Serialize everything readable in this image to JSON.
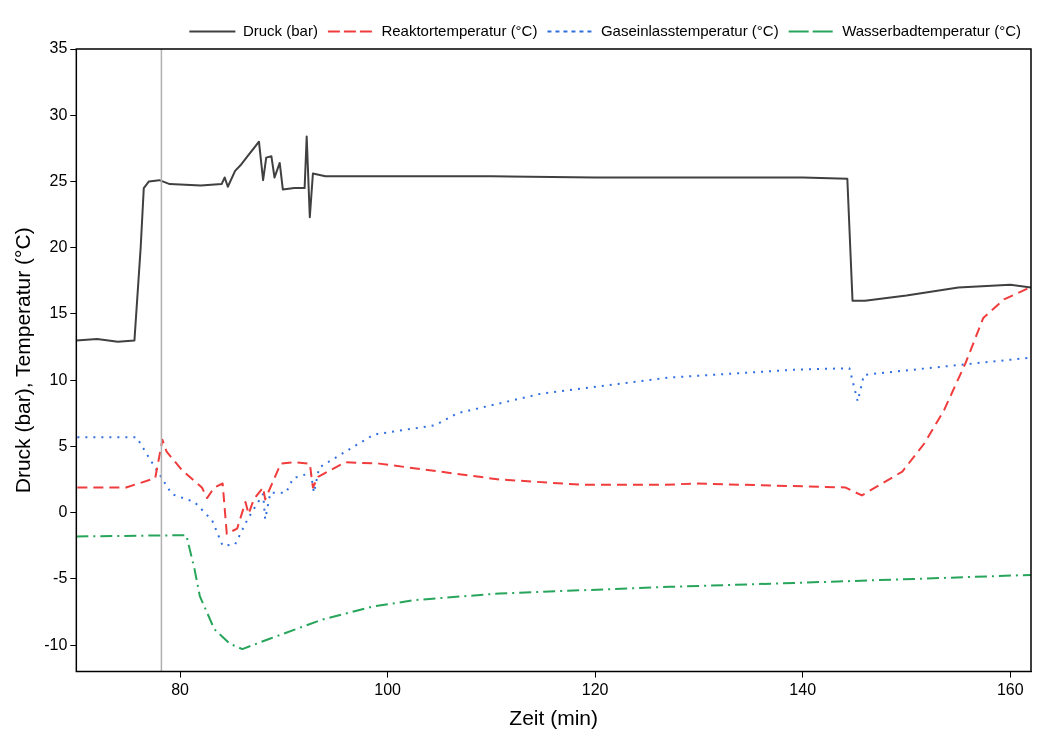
{
  "chart_data": {
    "type": "line",
    "xlabel": "Zeit (min)",
    "ylabel": "Druck (bar), Temperatur (°C)",
    "xlim": [
      70,
      162
    ],
    "xticks": [
      80,
      100,
      120,
      140,
      160
    ],
    "ylim": [
      -12,
      35
    ],
    "yticks": [
      -10,
      -5,
      0,
      5,
      10,
      15,
      20,
      25,
      30,
      35
    ],
    "legend": "top right",
    "marker": "none",
    "ref_lines": [
      {
        "axis": "x",
        "value": 78.2,
        "color": "#b0b0b0"
      }
    ],
    "series": [
      {
        "name": "Druck (bar)",
        "color": "#404040",
        "line_style": "solid",
        "x": [
          70,
          72,
          74,
          75.6,
          76.2,
          76.5,
          77,
          78,
          79,
          82,
          84,
          84.3,
          84.6,
          85.3,
          85.8,
          86.6,
          87.3,
          87.6,
          88.0,
          88.3,
          88.8,
          89.1,
          89.6,
          89.9,
          91,
          92,
          92.2,
          92.5,
          92.8,
          94,
          100,
          110,
          120,
          130,
          140,
          144.3,
          144.8,
          146,
          150,
          155,
          160,
          162
        ],
        "values": [
          13.0,
          13.1,
          12.9,
          13.0,
          20.0,
          24.5,
          25.0,
          25.1,
          24.8,
          24.7,
          24.8,
          25.3,
          24.6,
          25.8,
          26.2,
          27.0,
          27.7,
          28.0,
          25.1,
          26.8,
          26.9,
          25.3,
          26.4,
          24.4,
          24.5,
          24.5,
          28.4,
          22.3,
          25.6,
          25.4,
          25.4,
          25.4,
          25.3,
          25.3,
          25.3,
          25.2,
          16.0,
          16.0,
          16.4,
          17.0,
          17.2,
          17.0
        ]
      },
      {
        "name": "Reaktortemperatur (°C)",
        "color": "#f03c3c",
        "line_style": "dashed",
        "x": [
          70.1,
          74.8,
          77.6,
          78.3,
          78.7,
          80.2,
          82.1,
          82.6,
          83.3,
          84.1,
          84.5,
          85.5,
          86.3,
          86.6,
          87.1,
          88.0,
          88.2,
          89.7,
          91.0,
          92.5,
          92.8,
          93.3,
          95.9,
          99.2,
          110.8,
          118.9,
          126.8,
          129.6,
          144.1,
          145.7,
          149.6,
          151.7,
          153.6,
          155.7,
          157.4,
          159.4,
          161.9
        ],
        "values": [
          1.9,
          1.9,
          2.6,
          5.5,
          4.6,
          3.2,
          1.9,
          1.1,
          1.9,
          2.2,
          -1.6,
          -1.2,
          0.8,
          -0.1,
          1.0,
          1.9,
          1.0,
          3.7,
          3.8,
          3.7,
          1.9,
          2.7,
          3.8,
          3.7,
          2.5,
          2.1,
          2.1,
          2.2,
          1.9,
          1.3,
          3.1,
          5.2,
          7.7,
          11.3,
          14.7,
          16.1,
          17.0
        ]
      },
      {
        "name": "Gaseinlasstemperatur (°C)",
        "color": "#2f6fe0",
        "line_style": "dotted",
        "x": [
          70.1,
          75.8,
          77.2,
          78.4,
          79.2,
          81.4,
          83.1,
          84.1,
          85.3,
          86.5,
          88.0,
          88.2,
          88.7,
          90.2,
          90.9,
          92.6,
          92.9,
          93.4,
          97.2,
          98.7,
          104.6,
          106.7,
          114.9,
          127.2,
          139.4,
          144.5,
          145.3,
          145.9,
          155.7,
          162
        ],
        "values": [
          5.7,
          5.7,
          3.9,
          2.4,
          1.4,
          0.8,
          -0.6,
          -2.5,
          -2.4,
          -0.5,
          1.4,
          -0.5,
          1.5,
          1.5,
          2.6,
          3.0,
          1.5,
          3.4,
          5.2,
          5.9,
          6.6,
          7.5,
          9.0,
          10.2,
          10.8,
          10.9,
          8.4,
          10.4,
          11.2,
          11.7
        ]
      },
      {
        "name": "Wasserbadtemperatur (°C)",
        "color": "#27a55a",
        "line_style": "dashdot",
        "x": [
          70,
          80.6,
          81.4,
          81.9,
          83.3,
          84.8,
          86.0,
          88.7,
          93.6,
          98.5,
          102.6,
          110.8,
          127.2,
          143.4,
          162
        ],
        "values": [
          -1.8,
          -1.7,
          -4.3,
          -6.3,
          -8.8,
          -9.9,
          -10.3,
          -9.5,
          -8.1,
          -7.1,
          -6.6,
          -6.1,
          -5.6,
          -5.2,
          -4.7
        ]
      }
    ]
  }
}
